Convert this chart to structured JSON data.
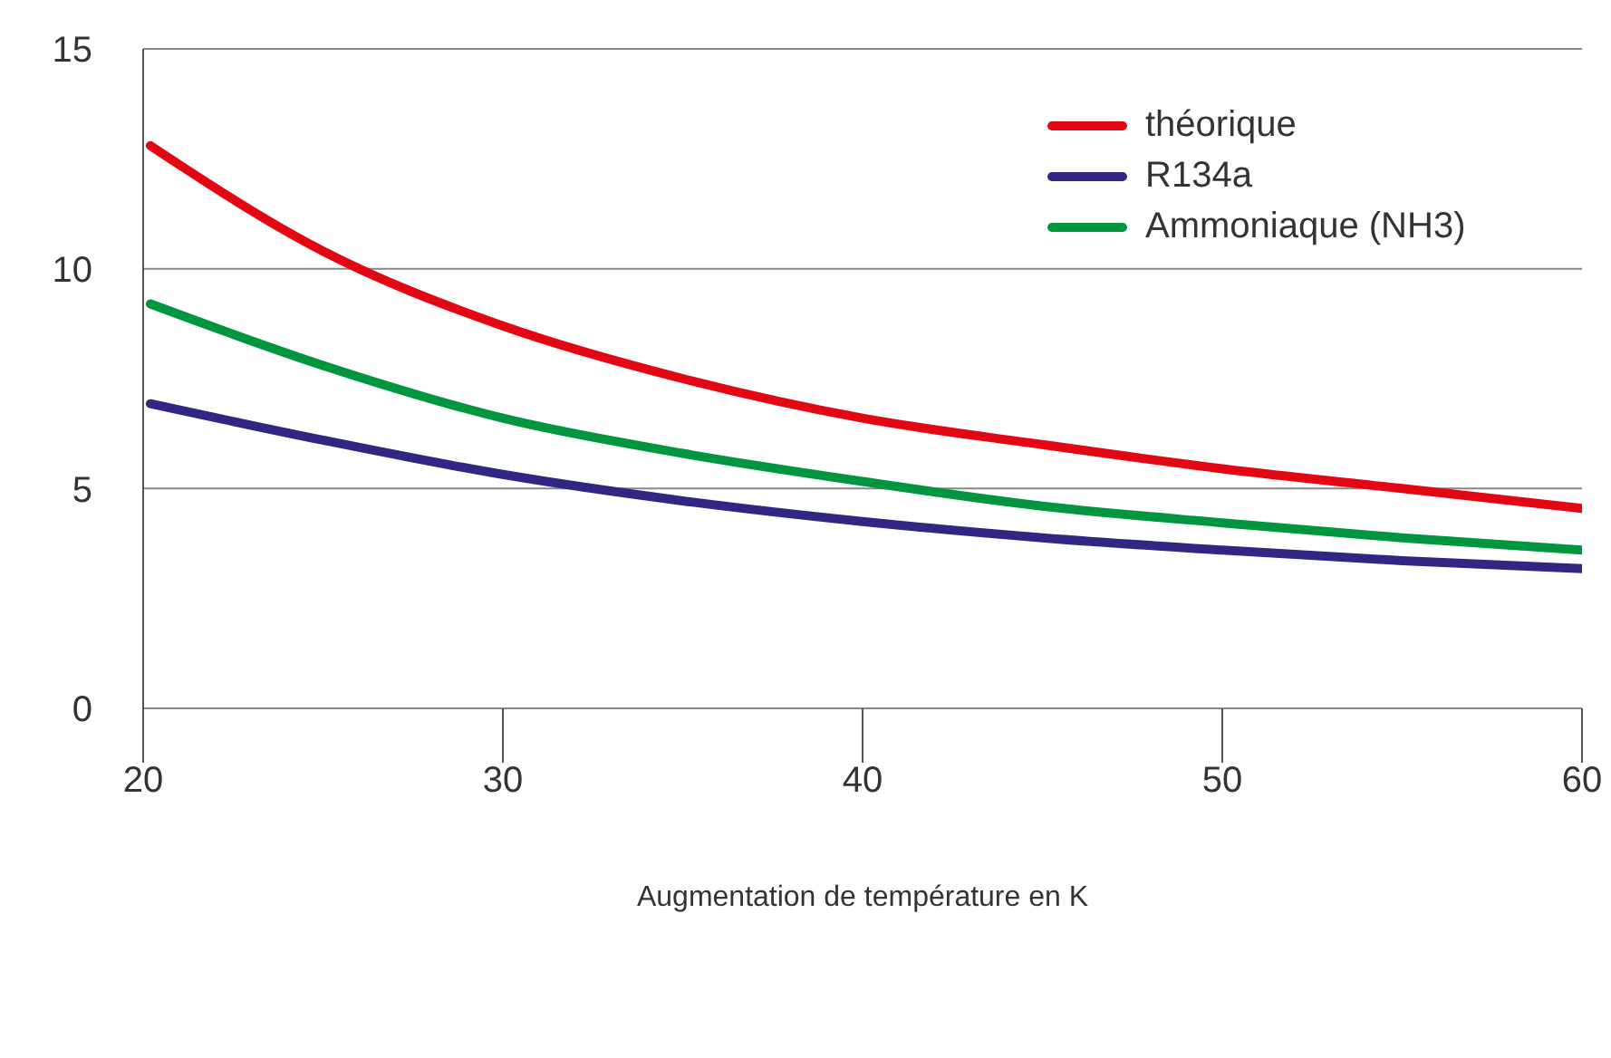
{
  "chart_data": {
    "type": "line",
    "xlabel": "Augmentation de température en K",
    "xlim": [
      20,
      60
    ],
    "xticks": [
      20,
      30,
      40,
      50,
      60
    ],
    "ylim": [
      0,
      15
    ],
    "yticks": [
      0,
      5,
      10,
      15
    ],
    "grid": "y",
    "legend": "top right",
    "marker": "none",
    "line_style": "solid",
    "series": [
      {
        "name": "théorique",
        "color": "#e30613",
        "x": [
          20.2,
          25,
          30,
          35,
          40,
          45,
          50,
          55,
          60
        ],
        "values": [
          12.8,
          10.4,
          8.7,
          7.5,
          6.6,
          6.0,
          5.45,
          5.0,
          4.55
        ]
      },
      {
        "name": "R134a",
        "color": "#312783",
        "x": [
          20.2,
          25,
          30,
          35,
          40,
          45,
          50,
          55,
          60
        ],
        "values": [
          6.93,
          6.1,
          5.32,
          4.72,
          4.25,
          3.88,
          3.6,
          3.36,
          3.18
        ]
      },
      {
        "name": "Ammoniaque (NH3)",
        "color": "#009640",
        "x": [
          20.2,
          25,
          30,
          35,
          40,
          45,
          50,
          55,
          60
        ],
        "values": [
          9.2,
          7.8,
          6.6,
          5.8,
          5.16,
          4.6,
          4.22,
          3.88,
          3.6
        ]
      }
    ]
  }
}
